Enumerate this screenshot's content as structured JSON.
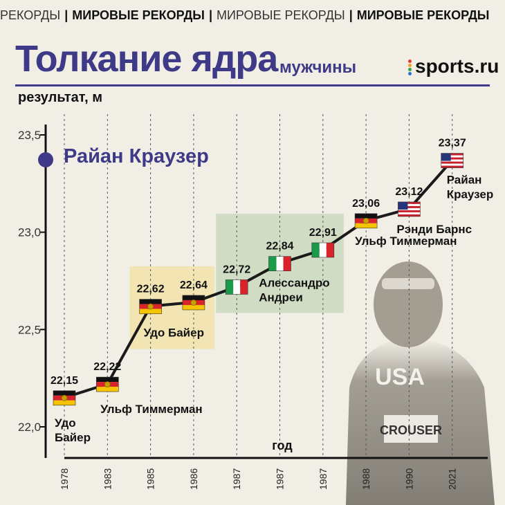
{
  "banner": {
    "items": [
      {
        "text": "РЕКОРДЫ",
        "bold": false
      },
      {
        "text": "|",
        "sep": true
      },
      {
        "text": "МИРОВЫЕ РЕКОРДЫ",
        "bold": true
      },
      {
        "text": "|",
        "sep": true
      },
      {
        "text": "МИРОВЫЕ РЕКОРДЫ",
        "bold": false
      },
      {
        "text": "|",
        "sep": true
      },
      {
        "text": "МИРОВЫЕ РЕКОРДЫ",
        "bold": true
      }
    ]
  },
  "header": {
    "title": "Толкание ядра",
    "subtitle": "мужчины",
    "brand": "sports.ru"
  },
  "legend": {
    "label": "Райан Краузер"
  },
  "colors": {
    "accent": "#3f3a87",
    "line": "#1a1a1a",
    "yellow_box": "#f3e2a6",
    "green_box": "#c9d7bd"
  },
  "chart_data": {
    "type": "line",
    "title": "Толкание ядра",
    "subtitle": "мужчины",
    "ylabel": "результат, м",
    "xlabel": "год",
    "ylim": [
      21.85,
      23.55
    ],
    "yticks": [
      22.0,
      22.5,
      23.0,
      23.5
    ],
    "ytick_labels": [
      "22,0",
      "22,5",
      "23,0",
      "23,5"
    ],
    "categories": [
      "1978",
      "1983",
      "1985",
      "1986",
      "1987",
      "1987",
      "1987",
      "1988",
      "1990",
      "2021"
    ],
    "values": [
      22.15,
      22.22,
      22.62,
      22.64,
      22.72,
      22.84,
      22.91,
      23.06,
      23.12,
      23.37
    ],
    "value_labels": [
      "22,15",
      "22,22",
      "22,62",
      "22,64",
      "22,72",
      "22,84",
      "22,91",
      "23,06",
      "23,12",
      "23,37"
    ],
    "flags": [
      "gdr",
      "gdr",
      "gdr",
      "gdr",
      "italy",
      "italy",
      "italy",
      "gdr",
      "usa",
      "usa"
    ],
    "athlete_labels": [
      {
        "index": 0,
        "lines": [
          "Удо",
          "Байер"
        ]
      },
      {
        "index": 1,
        "lines": [
          "Ульф Тиммерман"
        ]
      },
      {
        "index": 2,
        "lines": [
          "Удо Байер"
        ]
      },
      {
        "index": 4,
        "lines": [
          "Алессандро",
          "Андреи"
        ]
      },
      {
        "index": 7,
        "lines": [
          "Ульф Тиммерман"
        ]
      },
      {
        "index": 8,
        "lines": [
          "Рэнди Барнс"
        ]
      },
      {
        "index": 9,
        "lines": [
          "Райан",
          "Краузер"
        ]
      }
    ],
    "group_boxes": [
      {
        "from": 2,
        "to": 3,
        "color": "yellow"
      },
      {
        "from": 4,
        "to": 6,
        "color": "green"
      }
    ],
    "photo_caption": {
      "jersey": "USA",
      "bib": "CROUSER"
    }
  }
}
